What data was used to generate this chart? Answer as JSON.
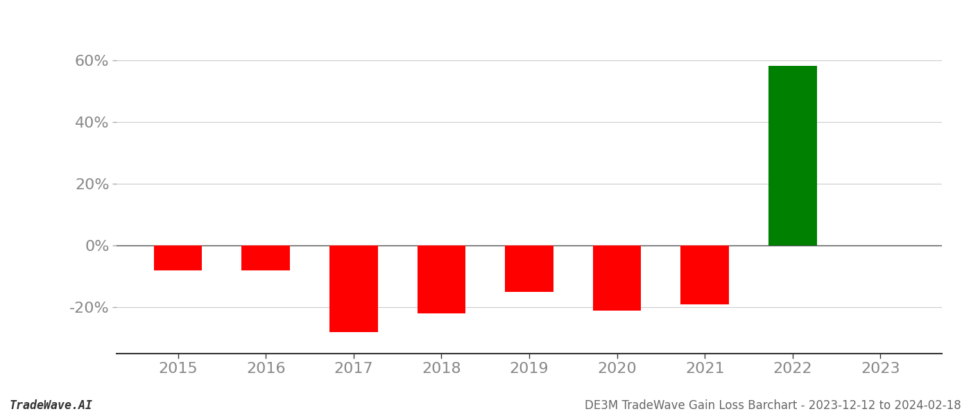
{
  "years": [
    2015,
    2016,
    2017,
    2018,
    2019,
    2020,
    2021,
    2022,
    2023
  ],
  "values": [
    -0.08,
    -0.08,
    -0.28,
    -0.22,
    -0.15,
    -0.21,
    -0.19,
    0.58,
    null
  ],
  "bar_colors": [
    "red",
    "red",
    "red",
    "red",
    "red",
    "red",
    "red",
    "green",
    null
  ],
  "ylim": [
    -0.35,
    0.7
  ],
  "yticks": [
    -0.2,
    0.0,
    0.2,
    0.4,
    0.6
  ],
  "title": "DE3M TradeWave Gain Loss Barchart - 2023-12-12 to 2024-02-18",
  "footer_left": "TradeWave.AI",
  "bar_width": 0.55,
  "background_color": "#ffffff",
  "grid_color": "#cccccc",
  "axis_label_color": "#888888",
  "title_fontsize": 12,
  "footer_fontsize": 12,
  "tick_fontsize": 16
}
